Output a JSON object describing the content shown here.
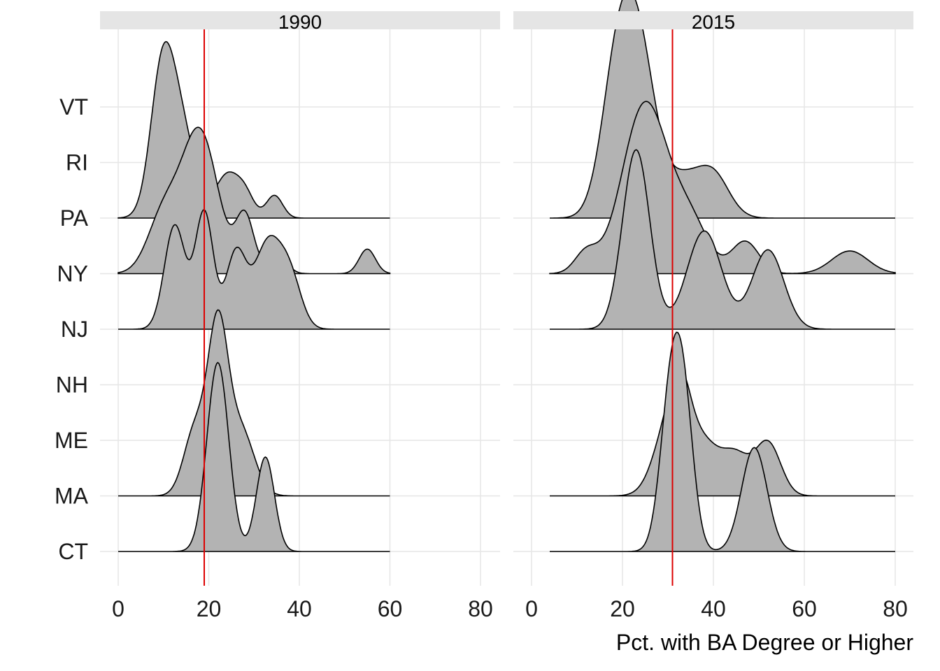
{
  "chart_data": {
    "type": "ridgeline",
    "xlabel": "Pct. with BA Degree or Higher",
    "ylabel": "",
    "xlim": [
      0,
      80
    ],
    "x_ticks": [
      0,
      20,
      40,
      60,
      80
    ],
    "y_categories": [
      "CT",
      "MA",
      "ME",
      "NH",
      "NJ",
      "NY",
      "PA",
      "RI",
      "VT"
    ],
    "ridge_scale": 3.4,
    "colors": {
      "fill": "#b3b3b3",
      "line": "#000000",
      "reference_line": "#dd0000",
      "strip": "#e5e5e5",
      "grid": "#e6e6e6"
    },
    "grid": true,
    "panels": [
      {
        "label": "1990",
        "reference_x": 19,
        "x_extent": [
          0,
          60
        ],
        "series": [
          {
            "state": "CT",
            "peaks": [
              [
                22,
                1.0,
                2.4
              ],
              [
                32.5,
                0.5,
                2.0
              ]
            ]
          },
          {
            "state": "MA",
            "peaks": [
              [
                17,
                0.35,
                2.5
              ],
              [
                22,
                0.85,
                2.2
              ],
              [
                27,
                0.35,
                3.0
              ]
            ]
          },
          {
            "state": "ME",
            "peaks": []
          },
          {
            "state": "NH",
            "peaks": []
          },
          {
            "state": "NJ",
            "peaks": [
              [
                12.5,
                0.55,
                2.3
              ],
              [
                19,
                0.62,
                2.0
              ],
              [
                26,
                0.4,
                2.2
              ],
              [
                33,
                0.45,
                3.0
              ],
              [
                38,
                0.25,
                2.5
              ]
            ]
          },
          {
            "state": "NY",
            "peaks": [
              [
                10,
                0.3,
                3.5
              ],
              [
                18,
                0.75,
                4.0
              ],
              [
                28,
                0.3,
                2.0
              ],
              [
                35,
                0.12,
                2.0
              ],
              [
                55,
                0.13,
                1.8
              ]
            ]
          },
          {
            "state": "PA",
            "peaks": [
              [
                9.5,
                0.55,
                2.5
              ],
              [
                13,
                0.55,
                3.5
              ],
              [
                24,
                0.22,
                2.5
              ],
              [
                28,
                0.12,
                2.0
              ],
              [
                34.5,
                0.12,
                1.8
              ]
            ]
          },
          {
            "state": "RI",
            "peaks": []
          },
          {
            "state": "VT",
            "peaks": []
          }
        ]
      },
      {
        "label": "2015",
        "reference_x": 31,
        "x_extent": [
          4,
          80
        ],
        "series": [
          {
            "state": "CT",
            "peaks": [
              [
                30.5,
                0.75,
                2.3
              ],
              [
                33.5,
                0.7,
                2.2
              ],
              [
                49,
                0.55,
                2.8
              ]
            ]
          },
          {
            "state": "MA",
            "peaks": [
              [
                31,
                0.45,
                3.5
              ],
              [
                33,
                0.2,
                2.0
              ],
              [
                38,
                0.25,
                3.5
              ],
              [
                45,
                0.2,
                3.0
              ],
              [
                52,
                0.28,
                2.8
              ]
            ]
          },
          {
            "state": "ME",
            "peaks": []
          },
          {
            "state": "NH",
            "peaks": []
          },
          {
            "state": "NJ",
            "peaks": [
              [
                23,
                0.95,
                3.0
              ],
              [
                38,
                0.52,
                3.8
              ],
              [
                52,
                0.42,
                3.5
              ]
            ]
          },
          {
            "state": "NY",
            "peaks": [
              [
                12,
                0.11,
                2.5
              ],
              [
                25,
                0.9,
                5.0
              ],
              [
                35,
                0.25,
                4.0
              ],
              [
                47,
                0.17,
                3.0
              ],
              [
                70,
                0.12,
                4.0
              ]
            ]
          },
          {
            "state": "PA",
            "peaks": [
              [
                19,
                0.8,
                3.5
              ],
              [
                24,
                0.75,
                3.5
              ],
              [
                33,
                0.2,
                4.0
              ],
              [
                40,
                0.22,
                3.5
              ]
            ]
          },
          {
            "state": "RI",
            "peaks": []
          },
          {
            "state": "VT",
            "peaks": []
          }
        ]
      }
    ]
  }
}
